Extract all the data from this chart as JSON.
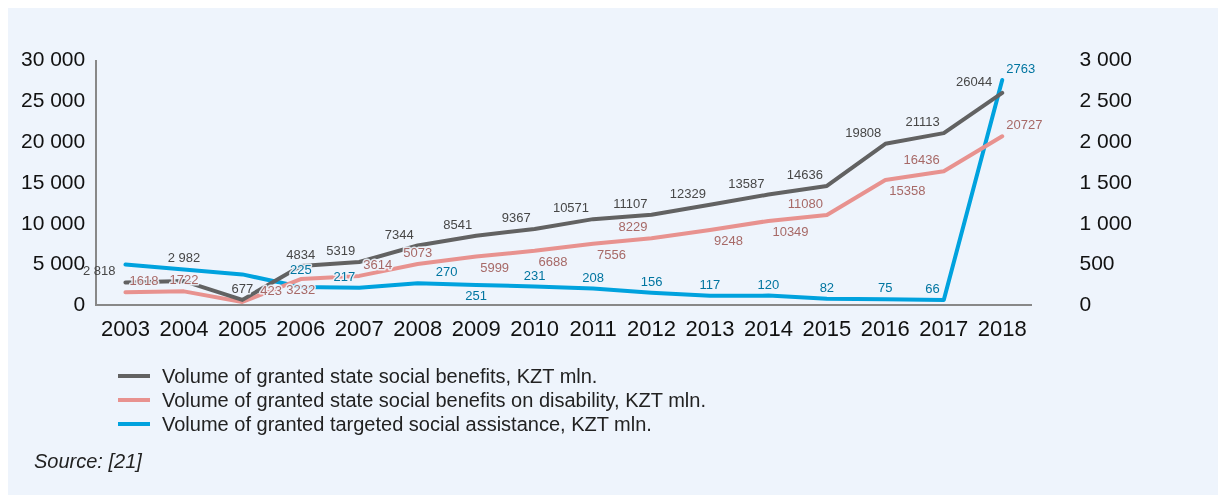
{
  "chart_data": {
    "type": "line",
    "categories": [
      "2003",
      "2004",
      "2005",
      "2006",
      "2007",
      "2008",
      "2009",
      "2010",
      "2011",
      "2012",
      "2013",
      "2014",
      "2015",
      "2016",
      "2017",
      "2018"
    ],
    "series": [
      {
        "name": "Volume of granted state social benefits, KZT mln.",
        "color": "#626262",
        "values": [
          2818,
          2982,
          677,
          4834,
          5319,
          7344,
          8541,
          9367,
          10571,
          11107,
          12329,
          13587,
          14636,
          19808,
          21113,
          26044
        ],
        "value_labels": [
          "2 818",
          "2 982",
          "677",
          "4834",
          "5319",
          "7344",
          "8541",
          "9367",
          "10571",
          "11107",
          "12329",
          "13587",
          "14636",
          "19808",
          "21113",
          "26044"
        ]
      },
      {
        "name": "Volume of granted state social benefits on disability, KZT mln.",
        "color": "#e8928f",
        "values": [
          1618,
          1722,
          423,
          3232,
          3614,
          5073,
          5999,
          6688,
          7556,
          8229,
          9248,
          10349,
          11080,
          15358,
          16436,
          20727
        ],
        "value_labels": [
          "1618",
          "1722",
          "423",
          "3232",
          "3614",
          "5073",
          "5999",
          "6688",
          "7556",
          "8229",
          "9248",
          "10349",
          "11080",
          "15358",
          "16436",
          "20727"
        ]
      },
      {
        "name": "Volume of granted targeted social assistance, KZT mln.",
        "color": "#00a2de",
        "axis": "y2",
        "values": [
          500,
          440,
          380,
          225,
          217,
          270,
          251,
          231,
          208,
          156,
          117,
          120,
          82,
          75,
          66,
          2763
        ],
        "value_labels": [
          null,
          null,
          null,
          "225",
          "217",
          "270",
          "251",
          "231",
          "208",
          "156",
          "117",
          "120",
          "82",
          "75",
          "66",
          "2763"
        ]
      }
    ],
    "ylim": [
      0,
      30000
    ],
    "yticks": [
      {
        "value": 0,
        "label": "0"
      },
      {
        "value": 5000,
        "label": "5 000"
      },
      {
        "value": 10000,
        "label": "10 000"
      },
      {
        "value": 15000,
        "label": "15 000"
      },
      {
        "value": 20000,
        "label": "20 000"
      },
      {
        "value": 25000,
        "label": "25 000"
      },
      {
        "value": 30000,
        "label": "30 000"
      }
    ],
    "y2lim": [
      0,
      3000
    ],
    "y2ticks": [
      {
        "value": 0,
        "label": "0"
      },
      {
        "value": 500,
        "label": "500"
      },
      {
        "value": 1000,
        "label": "1 000"
      },
      {
        "value": 1500,
        "label": "1 500"
      },
      {
        "value": 2000,
        "label": "2 000"
      },
      {
        "value": 2500,
        "label": "2 500"
      },
      {
        "value": 3000,
        "label": "3 000"
      }
    ],
    "grid": false,
    "legend": "bottom",
    "marker": "none",
    "line_style": "solid",
    "annotations": [
      "Source: [21]"
    ]
  }
}
